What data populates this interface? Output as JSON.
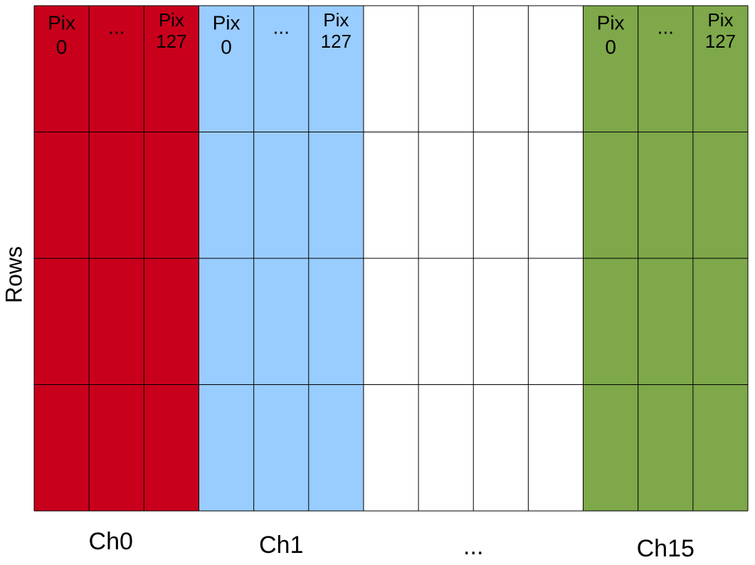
{
  "y_label": "Rows",
  "groups": [
    {
      "label": "Ch0",
      "color": "#c9001c",
      "headers": [
        [
          "Pix",
          "0"
        ],
        [
          "..."
        ],
        [
          "Pix",
          "127"
        ]
      ]
    },
    {
      "label": "Ch1",
      "color": "#99ccff",
      "headers": [
        [
          "Pix",
          "0"
        ],
        [
          "..."
        ],
        [
          "Pix",
          "127"
        ]
      ]
    },
    {
      "label": "...",
      "color": "#ffffff",
      "headers": []
    },
    {
      "label": "Ch15",
      "color": "#7ea84a",
      "headers": [
        [
          "Pix",
          "0"
        ],
        [
          "..."
        ],
        [
          "Pix",
          "127"
        ]
      ]
    }
  ]
}
